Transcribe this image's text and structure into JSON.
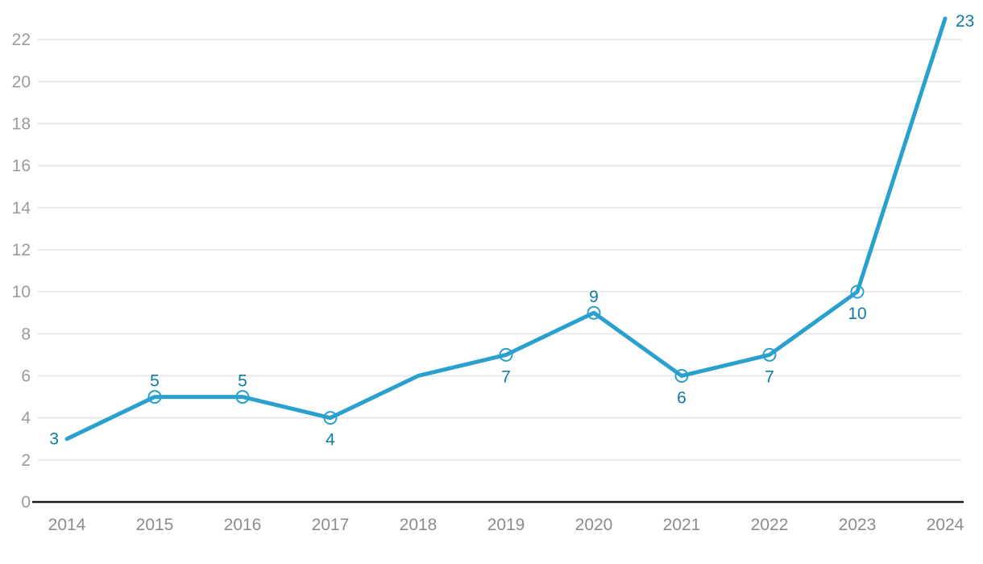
{
  "chart_data": {
    "type": "line",
    "title": "",
    "xlabel": "",
    "ylabel": "",
    "x": [
      2014,
      2015,
      2016,
      2017,
      2018,
      2019,
      2020,
      2021,
      2022,
      2023,
      2024
    ],
    "series": [
      {
        "name": "values",
        "values": [
          3,
          5,
          5,
          4,
          6,
          7,
          9,
          6,
          7,
          10,
          23
        ]
      }
    ],
    "points": [
      {
        "x": 2014,
        "y": 3,
        "label": "3",
        "label_pos": "left",
        "marker": false
      },
      {
        "x": 2015,
        "y": 5,
        "label": "5",
        "label_pos": "above",
        "marker": true
      },
      {
        "x": 2016,
        "y": 5,
        "label": "5",
        "label_pos": "above",
        "marker": true
      },
      {
        "x": 2017,
        "y": 4,
        "label": "4",
        "label_pos": "below",
        "marker": true
      },
      {
        "x": 2018,
        "y": 6,
        "label": null,
        "label_pos": null,
        "marker": false
      },
      {
        "x": 2019,
        "y": 7,
        "label": "7",
        "label_pos": "below",
        "marker": true
      },
      {
        "x": 2020,
        "y": 9,
        "label": "9",
        "label_pos": "above",
        "marker": true
      },
      {
        "x": 2021,
        "y": 6,
        "label": "6",
        "label_pos": "below",
        "marker": true
      },
      {
        "x": 2022,
        "y": 7,
        "label": "7",
        "label_pos": "below",
        "marker": true
      },
      {
        "x": 2023,
        "y": 10,
        "label": "10",
        "label_pos": "below",
        "marker": true
      },
      {
        "x": 2024,
        "y": 23,
        "label": "23",
        "label_pos": "right",
        "marker": false
      }
    ],
    "x_tick_labels": [
      "2014",
      "2015",
      "2016",
      "2017",
      "2018",
      "2019",
      "2020",
      "2021",
      "2022",
      "2023",
      "2024"
    ],
    "y_ticks": [
      0,
      2,
      4,
      6,
      8,
      10,
      12,
      14,
      16,
      18,
      20,
      22
    ],
    "ylim": [
      0,
      23.5
    ],
    "grid": "horizontal-only",
    "legend": "none",
    "colors": {
      "line": "#2AA0CE",
      "marker_fill": "#FFFFFF",
      "marker_stroke": "#2AA0CE",
      "point_label": "#0F7BA6",
      "y_tick_label": "#9B9B9B",
      "x_tick_label": "#8C8C8C",
      "gridline": "#E8E8E8",
      "axis_line": "#1A1A1A",
      "background": "#FFFFFF"
    }
  }
}
